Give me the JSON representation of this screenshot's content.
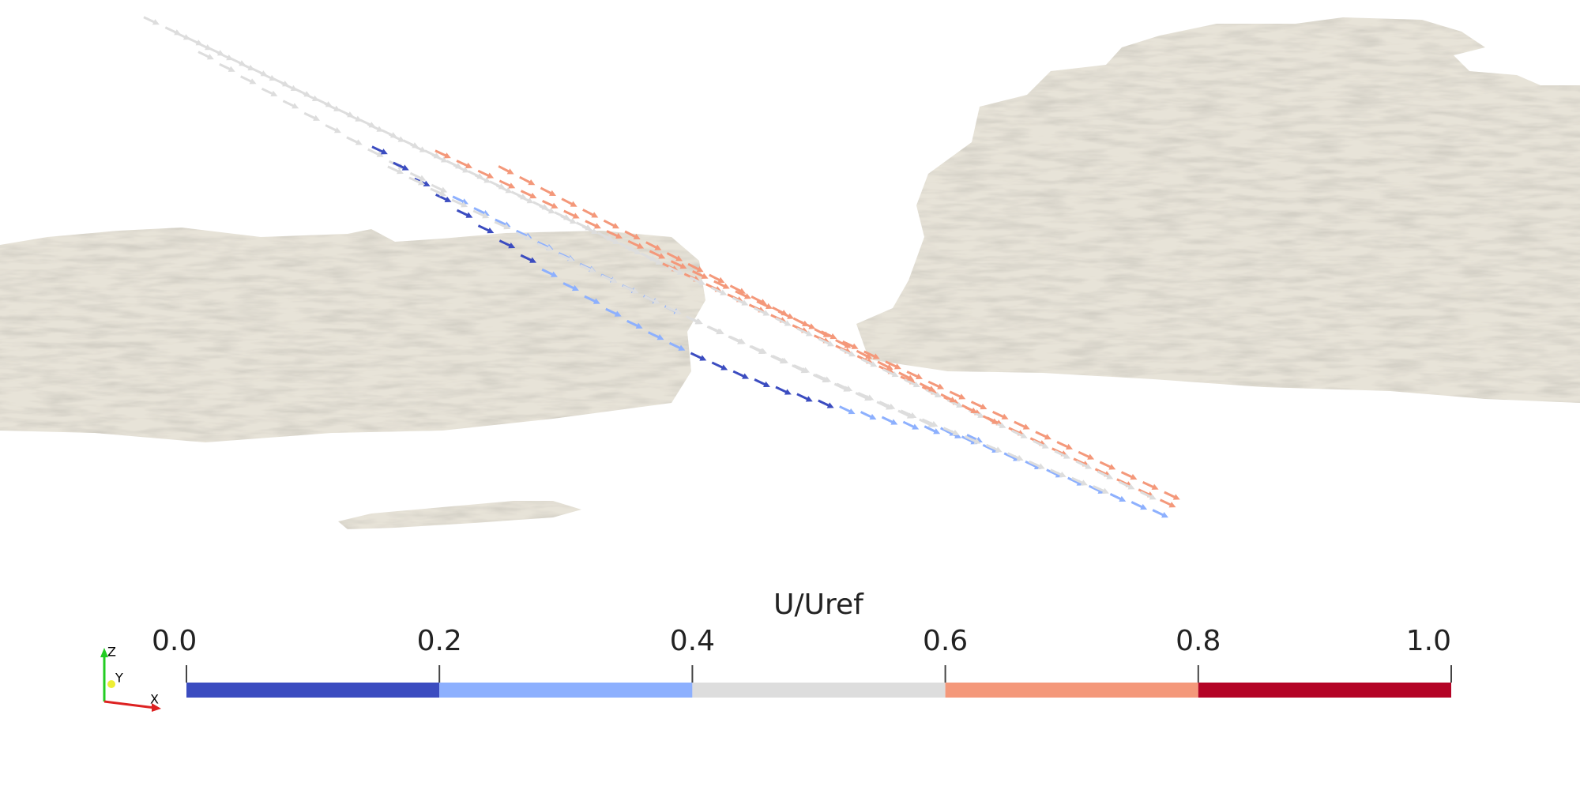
{
  "colorbar": {
    "title": "U/Uref",
    "range": [
      0,
      1
    ],
    "ticks": [
      {
        "value": 0,
        "label": "0.0"
      },
      {
        "value": 0.2,
        "label": "0.2"
      },
      {
        "value": 0.4,
        "label": "0.4"
      },
      {
        "value": 0.6,
        "label": "0.6"
      },
      {
        "value": 0.8,
        "label": "0.8"
      },
      {
        "value": 1,
        "label": "1.0"
      }
    ],
    "bins": [
      {
        "from": 0,
        "to": 0.2,
        "color": "#3b4cc0"
      },
      {
        "from": 0.2,
        "to": 0.4,
        "color": "#8db0fe"
      },
      {
        "from": 0.4,
        "to": 0.6,
        "color": "#dddddd"
      },
      {
        "from": 0.6,
        "to": 0.8,
        "color": "#f4987a"
      },
      {
        "from": 0.8,
        "to": 1,
        "color": "#b40426"
      }
    ]
  },
  "axes_triad": {
    "z": "Z",
    "y": "Y",
    "x": "X"
  }
}
